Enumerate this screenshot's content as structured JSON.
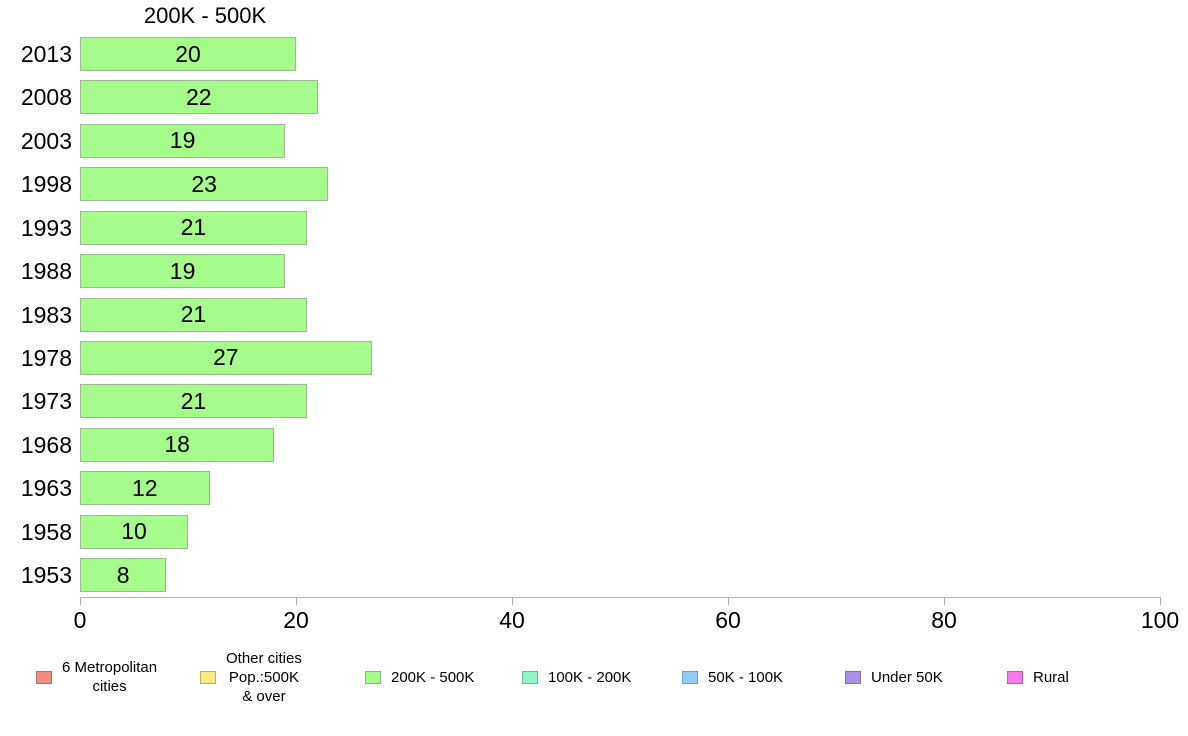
{
  "chart_data": {
    "type": "bar",
    "orientation": "horizontal",
    "title": "200K - 500K",
    "categories": [
      "2013",
      "2008",
      "2003",
      "1998",
      "1993",
      "1988",
      "1983",
      "1978",
      "1973",
      "1968",
      "1963",
      "1958",
      "1953"
    ],
    "values": [
      20,
      22,
      19,
      23,
      21,
      19,
      21,
      27,
      21,
      18,
      12,
      10,
      8
    ],
    "xlabel": "",
    "ylabel": "",
    "xlim": [
      0,
      100
    ],
    "xticks": [
      "0",
      "20",
      "40",
      "60",
      "80",
      "100"
    ],
    "grid": false,
    "legend_position": "bottom",
    "bar_color": "#A5FB8C",
    "bar_border_color": "#9CBA90",
    "axis_color": "#B0B0B0",
    "text_color": "#000000",
    "legend": [
      {
        "label": "6 Metropolitan cities",
        "lines": [
          "6 Metropolitan",
          "cities"
        ],
        "color": "#F58C85",
        "border": "#B66E69"
      },
      {
        "label": "Other cities Pop.:500K & over",
        "lines": [
          "Other cities",
          "Pop.:500K",
          "& over"
        ],
        "color": "#F9EC85",
        "border": "#BBB164"
      },
      {
        "label": "200K - 500K",
        "lines": [
          "200K - 500K"
        ],
        "color": "#A5FB8C",
        "border": "#85BC71"
      },
      {
        "label": "100K - 200K",
        "lines": [
          "100K - 200K"
        ],
        "color": "#8EF3C5",
        "border": "#72B795"
      },
      {
        "label": "50K - 100K",
        "lines": [
          "50K - 100K"
        ],
        "color": "#90CCF3",
        "border": "#739BB7"
      },
      {
        "label": "Under 50K",
        "lines": [
          "Under 50K"
        ],
        "color": "#AC8FE8",
        "border": "#8272AE"
      },
      {
        "label": "Rural",
        "lines": [
          "Rural"
        ],
        "color": "#F87AE8",
        "border": "#BA62AF"
      }
    ]
  }
}
